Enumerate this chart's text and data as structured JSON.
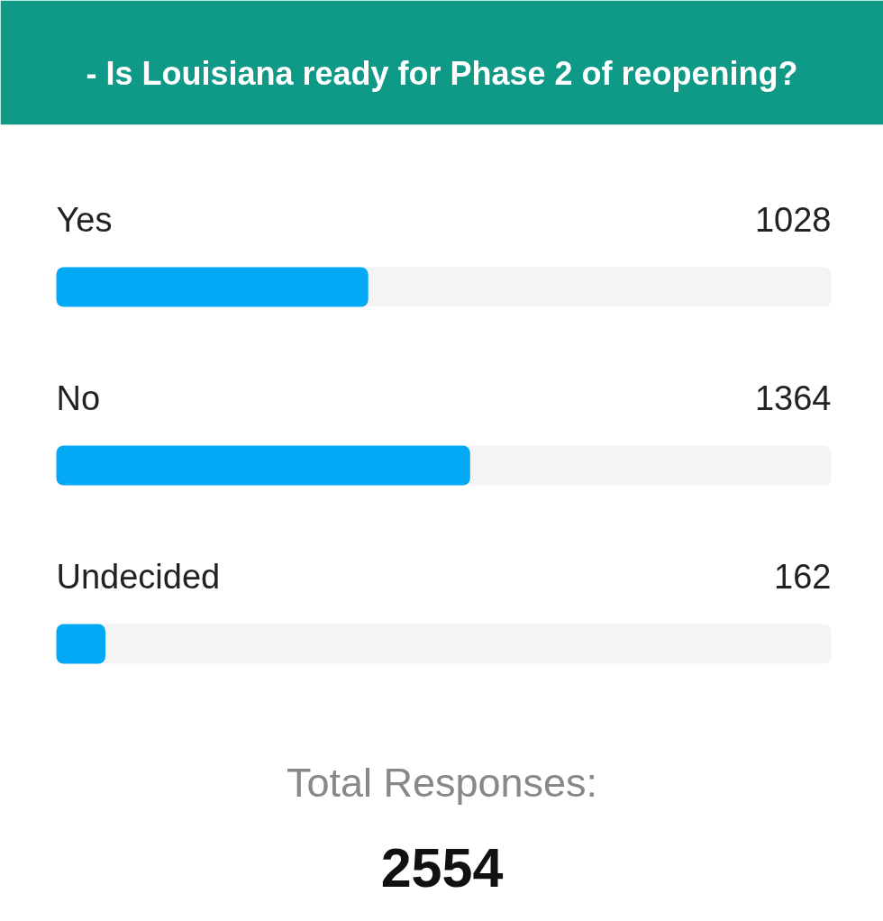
{
  "chart_data": {
    "type": "bar",
    "orientation": "horizontal",
    "title": "- Is Louisiana ready for Phase 2 of reopening?",
    "categories": [
      "Yes",
      "No",
      "Undecided"
    ],
    "values": [
      1028,
      1364,
      162
    ],
    "color": "#03a9f4",
    "data_labels": true,
    "tick_labels": false,
    "grid": false,
    "annotations": [
      "Total Responses:",
      "2554"
    ]
  }
}
